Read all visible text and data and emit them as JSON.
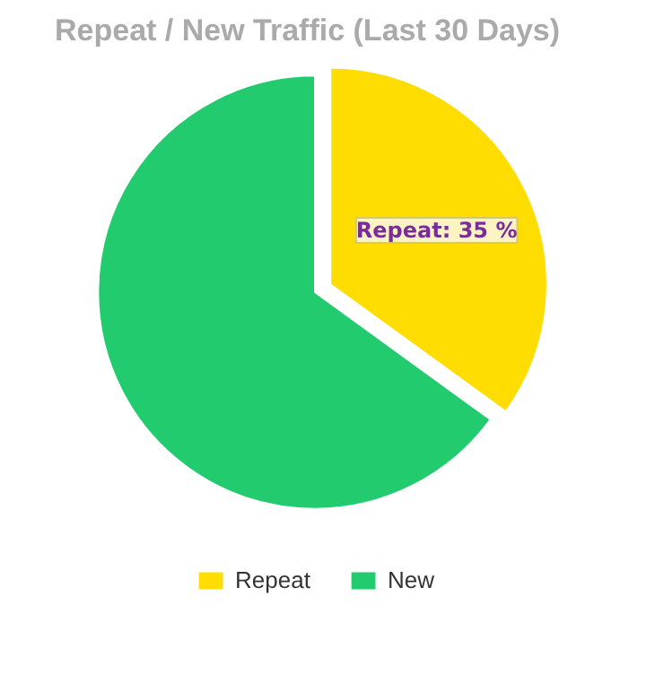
{
  "chart_data": {
    "type": "pie",
    "title": "Repeat / New Traffic (Last 30 Days)",
    "categories": [
      "Repeat",
      "New"
    ],
    "values": [
      35,
      65
    ],
    "colors": [
      "#ffdd00",
      "#22cc6e"
    ],
    "value_labels": [
      "Repeat: 35 %",
      null
    ],
    "legend": "bottom"
  }
}
